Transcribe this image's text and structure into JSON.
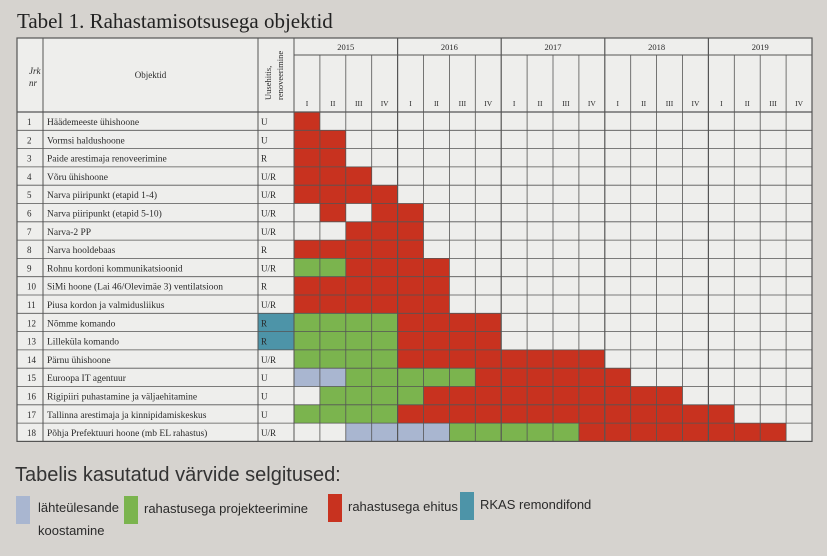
{
  "title": "Tabel 1. Rahastamisotsusega objektid",
  "headers": {
    "nr": "Jrk nr",
    "object": "Objektid",
    "type": "Uusehitis, renoveerimine"
  },
  "years": [
    "2015",
    "2016",
    "2017",
    "2018",
    "2019"
  ],
  "quarters": [
    "I",
    "II",
    "III",
    "IV"
  ],
  "colors": {
    "light-blue": "#a9b6d0",
    "green": "#7bb44e",
    "red": "#c8321f",
    "teal": "#4d94a8",
    "empty": "#eeeeec",
    "grid": "#555555"
  },
  "rows": [
    {
      "nr": "1",
      "name": "Häädemeeste ühishoone",
      "type": "U",
      "cells": "r"
    },
    {
      "nr": "2",
      "name": "Vormsi haldushoone",
      "type": "U",
      "cells": "rr"
    },
    {
      "nr": "3",
      "name": "Paide arestimaja renoveerimine",
      "type": "R",
      "cells": "rr"
    },
    {
      "nr": "4",
      "name": "Võru ühishoone",
      "type": "U/R",
      "cells": "rrr"
    },
    {
      "nr": "5",
      "name": "Narva piiripunkt (etapid 1-4)",
      "type": "U/R",
      "cells": "rrrr"
    },
    {
      "nr": "6",
      "name": "Narva piiripunkt (etapid 5-10)",
      "type": "U/R",
      "cells": "erprr"
    },
    {
      "nr": "7",
      "name": "Narva-2 PP",
      "type": "U/R",
      "cells": "eerrr"
    },
    {
      "nr": "8",
      "name": "Narva hooldebaas",
      "type": "R",
      "cells": "rrrrr"
    },
    {
      "nr": "9",
      "name": "Rohnu kordoni kommunikatsioonid",
      "type": "U/R",
      "cells": "ggrrrr"
    },
    {
      "nr": "10",
      "name": "SiMi hoone (Lai 46/Olevimäe 3) ventilatsioon",
      "type": "R",
      "cells": "rrrrrr"
    },
    {
      "nr": "11",
      "name": "Piusa kordon ja valmidusliikus",
      "type": "U/R",
      "cells": "rrrrrr"
    },
    {
      "nr": "12",
      "name": "Nõmme komando",
      "type": "R",
      "typeColor": "teal",
      "cells": "ggggrrrr"
    },
    {
      "nr": "13",
      "name": "Lilleküla komando",
      "type": "R",
      "typeColor": "teal",
      "cells": "ggggrrrr"
    },
    {
      "nr": "14",
      "name": "Pärnu ühishoone",
      "type": "U/R",
      "cells": "ggggrrrrrrrr"
    },
    {
      "nr": "15",
      "name": "Euroopa IT agentuur",
      "type": "U",
      "cells": "bbgggggrrrrrr"
    },
    {
      "nr": "16",
      "name": "Rigipiiri puhastamine ja väljaehitamine",
      "type": "U",
      "cells": "eggggrrrrrrrrrr"
    },
    {
      "nr": "17",
      "name": "Tallinna arestimaja ja kinnipidamiskeskus",
      "type": "U",
      "cells": "ggggrrrrrrrrrrrrr"
    },
    {
      "nr": "18",
      "name": "Põhja Prefektuuri hoone (mb EL rahastus)",
      "type": "U/R",
      "cells": "eebbbbgggggrrrrrrrr"
    }
  ],
  "legend": {
    "title": "Tabelis kasutatud värvide selgitused:",
    "items": [
      {
        "label": "lähteülesande",
        "label2": "koostamine",
        "color": "light-blue"
      },
      {
        "label": "rahastusega projekteerimine",
        "color": "green"
      },
      {
        "label": "rahastusega ehitus",
        "color": "red"
      },
      {
        "label": "RKAS remondifond",
        "color": "teal"
      }
    ]
  }
}
